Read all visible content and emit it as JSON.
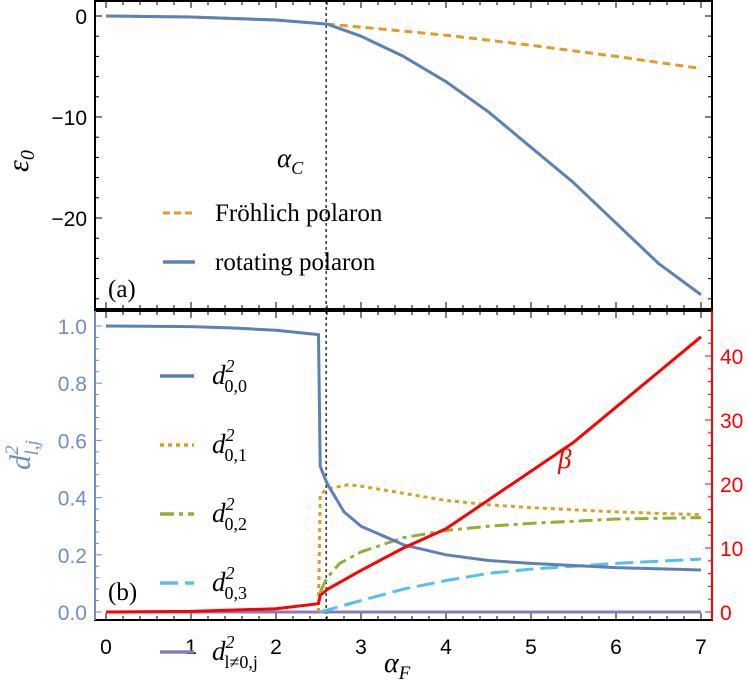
{
  "colors": {
    "blue": "#5E81B5",
    "orange": "#E19C24",
    "green": "#8FB032",
    "cyan": "#56C1E8",
    "purple": "#8C7BB5",
    "red": "#FF0000",
    "axis_blue": "#6F8FC4"
  },
  "chart_data": [
    {
      "type": "line",
      "panel_label": "(a)",
      "ylabel": {
        "main": "ε",
        "sub": "0"
      },
      "xlim": [
        -0.15,
        7.1
      ],
      "ylim": [
        -29,
        1.5
      ],
      "yticks": [
        0,
        -10,
        -20
      ],
      "ytick_labels": [
        "0",
        "−10",
        "−20"
      ],
      "annotation": {
        "main": "α",
        "sub": "C",
        "x": 2.59
      },
      "legend_position": "bottom-left",
      "series": [
        {
          "name": "Fröhlich polaron",
          "style": "dashed",
          "color": "#E19C24",
          "x": [
            0,
            1,
            2,
            2.6,
            3,
            4,
            5,
            6,
            7
          ],
          "y": [
            0,
            -0.1,
            -0.4,
            -0.8,
            -1.1,
            -1.9,
            -2.9,
            -4.0,
            -5.2
          ]
        },
        {
          "name": "rotating polaron",
          "style": "solid",
          "color": "#5E81B5",
          "x": [
            0,
            1,
            2,
            2.6,
            3,
            3.5,
            4,
            4.5,
            5,
            5.5,
            6,
            6.5,
            7
          ],
          "y": [
            0,
            -0.1,
            -0.4,
            -0.8,
            -2.0,
            -4.0,
            -6.5,
            -9.5,
            -13.0,
            -16.5,
            -20.5,
            -24.5,
            -27.6
          ]
        }
      ]
    },
    {
      "type": "line",
      "panel_label": "(b)",
      "xlabel": {
        "main": "α",
        "sub": "F"
      },
      "ylabel": {
        "main": "d",
        "sup": "2",
        "sub": "l,j"
      },
      "xlim": [
        -0.15,
        7.1
      ],
      "xticks": [
        "0",
        "1",
        "2",
        "3",
        "4",
        "5",
        "6",
        "7"
      ],
      "ylim": [
        -0.03,
        1.05
      ],
      "yticks": [
        "0.0",
        "0.2",
        "0.4",
        "0.6",
        "0.8",
        "1.0"
      ],
      "y2ticks": [
        "0",
        "10",
        "20",
        "30",
        "40"
      ],
      "y2_annotation": "β",
      "legend_position": "top-left",
      "series": [
        {
          "name": {
            "sup": "2",
            "sub": "0,0"
          },
          "style": "solid",
          "color": "#5E81B5",
          "x": [
            0,
            1,
            1.5,
            2,
            2.5,
            2.52,
            2.6,
            2.8,
            3,
            3.5,
            4,
            4.5,
            5,
            6,
            7
          ],
          "y": [
            1.0,
            0.998,
            0.993,
            0.985,
            0.97,
            0.51,
            0.45,
            0.35,
            0.3,
            0.235,
            0.2,
            0.18,
            0.17,
            0.155,
            0.147
          ]
        },
        {
          "name": {
            "sup": "2",
            "sub": "0,1"
          },
          "style": "dotted",
          "color": "#E19C24",
          "x": [
            2.5,
            2.52,
            2.6,
            2.85,
            3,
            3.5,
            4,
            4.5,
            5,
            6,
            7
          ],
          "y": [
            0.0,
            0.41,
            0.43,
            0.445,
            0.44,
            0.415,
            0.39,
            0.375,
            0.365,
            0.35,
            0.34
          ]
        },
        {
          "name": {
            "sup": "2",
            "sub": "0,2"
          },
          "style": "dashdot",
          "color": "#8FB032",
          "x": [
            2.52,
            2.6,
            2.75,
            3,
            3.5,
            4,
            4.5,
            5,
            6,
            7
          ],
          "y": [
            0.07,
            0.12,
            0.17,
            0.21,
            0.26,
            0.285,
            0.3,
            0.31,
            0.325,
            0.33
          ]
        },
        {
          "name": {
            "sup": "2",
            "sub": "0,3"
          },
          "style": "longdash",
          "color": "#56C1E8",
          "x": [
            2.52,
            3,
            3.5,
            4,
            4.5,
            5,
            5.5,
            6,
            7
          ],
          "y": [
            0.0,
            0.04,
            0.08,
            0.11,
            0.135,
            0.15,
            0.16,
            0.17,
            0.185
          ]
        },
        {
          "name": {
            "sup": "2",
            "sub": "l≠0,j"
          },
          "style": "solid",
          "color": "#8C7BB5",
          "x": [
            0,
            7
          ],
          "y": [
            0,
            0
          ]
        },
        {
          "name": "β",
          "axis": "right",
          "style": "solid",
          "color": "#FF0000",
          "x": [
            0,
            1,
            2,
            2.5,
            2.52,
            2.6,
            3,
            3.5,
            4,
            4.5,
            5,
            5.5,
            6,
            6.5,
            7
          ],
          "y": [
            0,
            0.1,
            0.5,
            1.3,
            2.6,
            3.5,
            6.5,
            10,
            13,
            17.5,
            22,
            26.5,
            32,
            37.5,
            43
          ]
        }
      ],
      "y2lim": [
        -1.3,
        45
      ]
    }
  ]
}
